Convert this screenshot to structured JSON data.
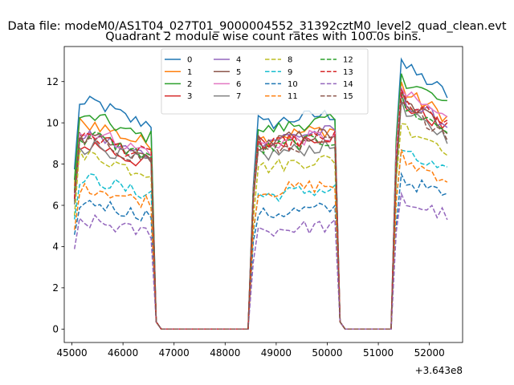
{
  "chart_data": {
    "type": "line",
    "suptitle": "Data file: modeM0/AS1T04_027T01_9000004552_31392cztM0_level2_quad_clean.evt",
    "title": "Quadrant 2 module wise count rates with 100.0s bins.",
    "xlabel": "",
    "ylabel": "",
    "x_offset_label": "+3.643e8",
    "xlim": [
      44850,
      52650
    ],
    "ylim": [
      -0.65,
      13.7
    ],
    "xticks": [
      45000,
      46000,
      47000,
      48000,
      49000,
      50000,
      51000,
      52000
    ],
    "yticks": [
      0,
      2,
      4,
      6,
      8,
      10,
      12
    ],
    "grid": false,
    "legend": {
      "placement": "upper center",
      "columns": 4
    },
    "segments": [
      {
        "start": 45050,
        "end": 46550,
        "trend": [
          0,
          0.4,
          0.0,
          -0.45,
          -0.6
        ]
      },
      {
        "start": 48550,
        "end": 50150,
        "trend": [
          -0.2,
          0.0,
          0.2,
          0.35,
          0.4
        ]
      },
      {
        "start": 51350,
        "end": 52350,
        "trend": [
          0.6,
          0.3,
          0.0,
          -0.3,
          -0.7
        ]
      }
    ],
    "off_level": 0.0,
    "series": [
      {
        "name": "0",
        "color": "#1f77b4",
        "style": "solid",
        "levels": [
          10.6,
          10.0,
          12.2
        ]
      },
      {
        "name": "1",
        "color": "#ff7f0e",
        "style": "solid",
        "levels": [
          9.6,
          9.3,
          11.0
        ]
      },
      {
        "name": "2",
        "color": "#2ca02c",
        "style": "solid",
        "levels": [
          9.9,
          9.7,
          11.6
        ]
      },
      {
        "name": "3",
        "color": "#d62728",
        "style": "solid",
        "levels": [
          8.6,
          9.0,
          10.4
        ]
      },
      {
        "name": "4",
        "color": "#9467bd",
        "style": "solid",
        "levels": [
          9.0,
          9.2,
          10.6
        ]
      },
      {
        "name": "5",
        "color": "#8c564b",
        "style": "solid",
        "levels": [
          8.9,
          9.1,
          10.5
        ]
      },
      {
        "name": "6",
        "color": "#e377c2",
        "style": "solid",
        "levels": [
          9.2,
          9.0,
          10.9
        ]
      },
      {
        "name": "7",
        "color": "#7f7f7f",
        "style": "solid",
        "levels": [
          8.6,
          8.5,
          10.0
        ]
      },
      {
        "name": "8",
        "color": "#bcbd22",
        "style": "dashed",
        "levels": [
          8.1,
          7.9,
          9.4
        ]
      },
      {
        "name": "9",
        "color": "#17becf",
        "style": "dashed",
        "levels": [
          7.0,
          6.5,
          8.1
        ]
      },
      {
        "name": "10",
        "color": "#1f77b4",
        "style": "dashed",
        "levels": [
          5.9,
          5.6,
          6.9
        ]
      },
      {
        "name": "11",
        "color": "#ff7f0e",
        "style": "dashed",
        "levels": [
          6.6,
          6.7,
          7.8
        ]
      },
      {
        "name": "12",
        "color": "#2ca02c",
        "style": "dashed",
        "levels": [
          9.0,
          8.8,
          10.3
        ]
      },
      {
        "name": "13",
        "color": "#d62728",
        "style": "dashed",
        "levels": [
          9.0,
          8.9,
          10.6
        ]
      },
      {
        "name": "14",
        "color": "#9467bd",
        "style": "dashed",
        "levels": [
          5.0,
          4.8,
          5.9
        ]
      },
      {
        "name": "15",
        "color": "#8c564b",
        "style": "dashed",
        "levels": [
          8.8,
          8.7,
          10.2
        ]
      }
    ]
  }
}
